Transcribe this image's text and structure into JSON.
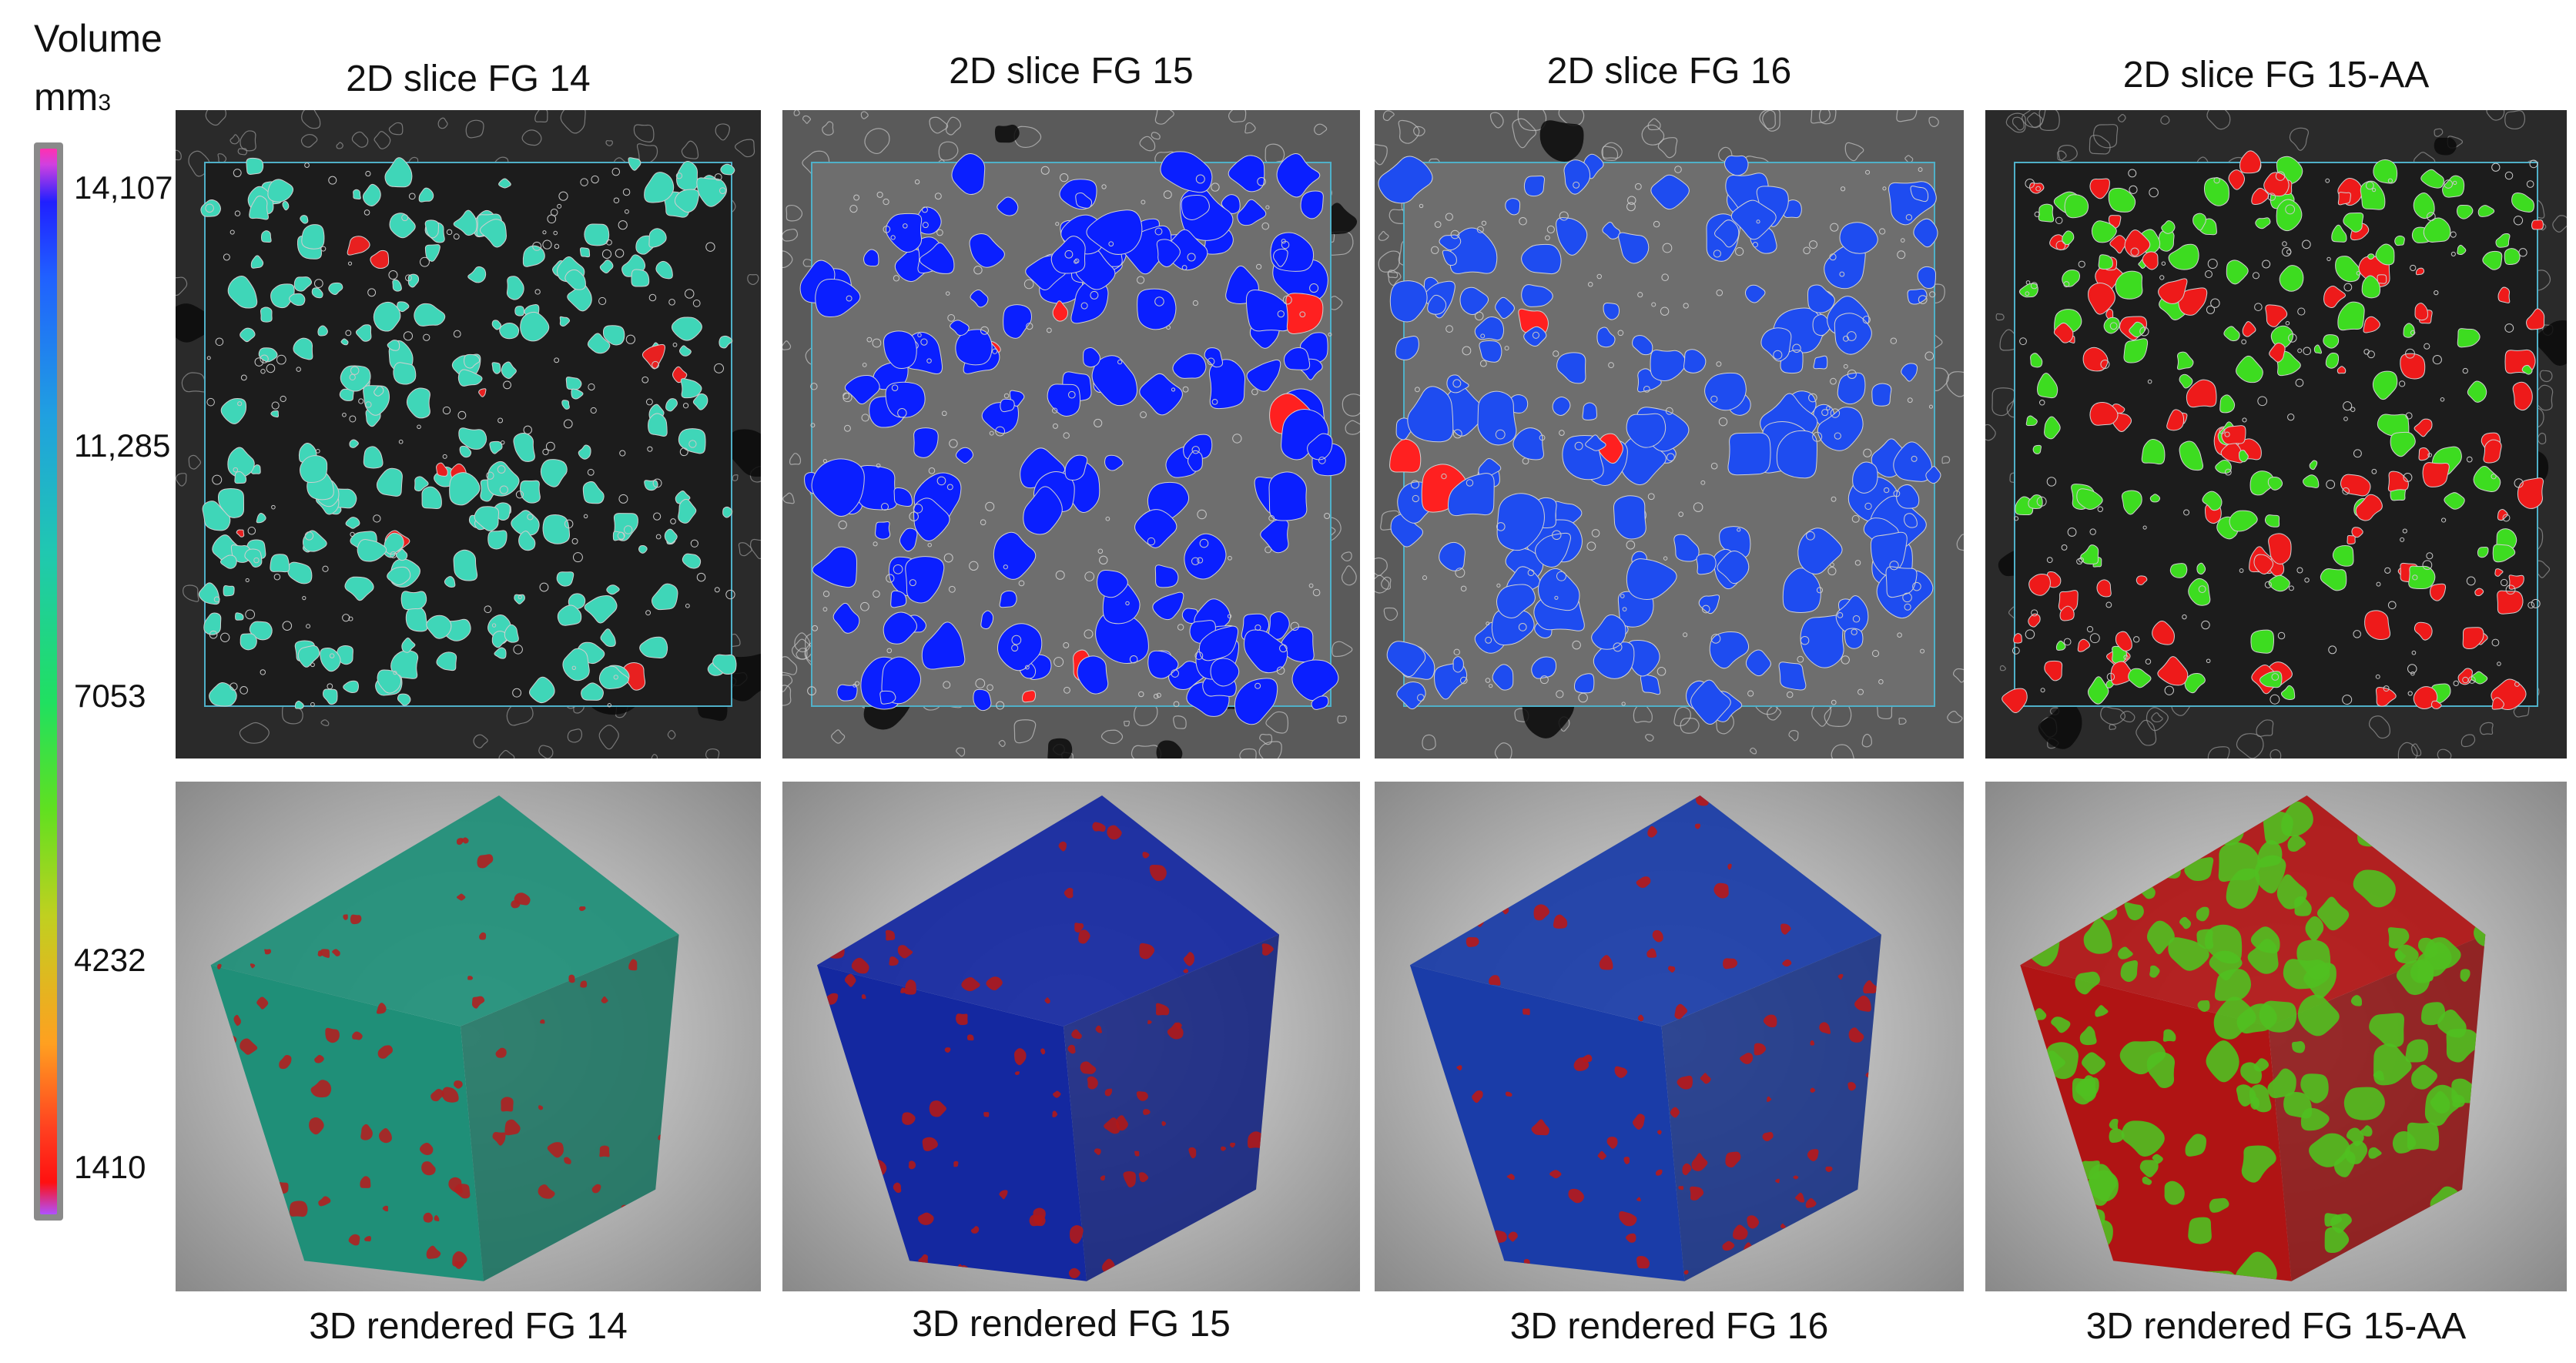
{
  "colorbar": {
    "title": "Volume",
    "unit_base": "mm",
    "unit_sub": "3",
    "ticks": [
      "14,107",
      "11,285",
      "7053",
      "4232",
      "1410"
    ],
    "colors": [
      "#ff30b0",
      "#2020ff",
      "#20c8b0",
      "#20e060",
      "#ffa020",
      "#ff1010",
      "#b050ff"
    ]
  },
  "top_row": [
    {
      "label": "2D slice FG 14",
      "fill": "#3fd6b8",
      "accent": "#e82020"
    },
    {
      "label": "2D slice FG 15",
      "fill": "#0a1fff",
      "accent": "#ff2020"
    },
    {
      "label": "2D slice FG 16",
      "fill": "#1e4cf0",
      "accent": "#ff2020"
    },
    {
      "label": "2D slice FG 15-AA",
      "fill": "#3ddc20",
      "accent": "#ee1a1a"
    }
  ],
  "bottom_row": [
    {
      "label": "3D rendered FG 14",
      "face": "#1f8f78",
      "speck": "#b02020"
    },
    {
      "label": "3D rendered FG 15",
      "face": "#1428a0",
      "speck": "#b01818"
    },
    {
      "label": "3D rendered FG 16",
      "face": "#1a3ca8",
      "speck": "#b81818"
    },
    {
      "label": "3D rendered FG 15-AA",
      "face": "#b01414",
      "speck": "#50c020"
    }
  ]
}
